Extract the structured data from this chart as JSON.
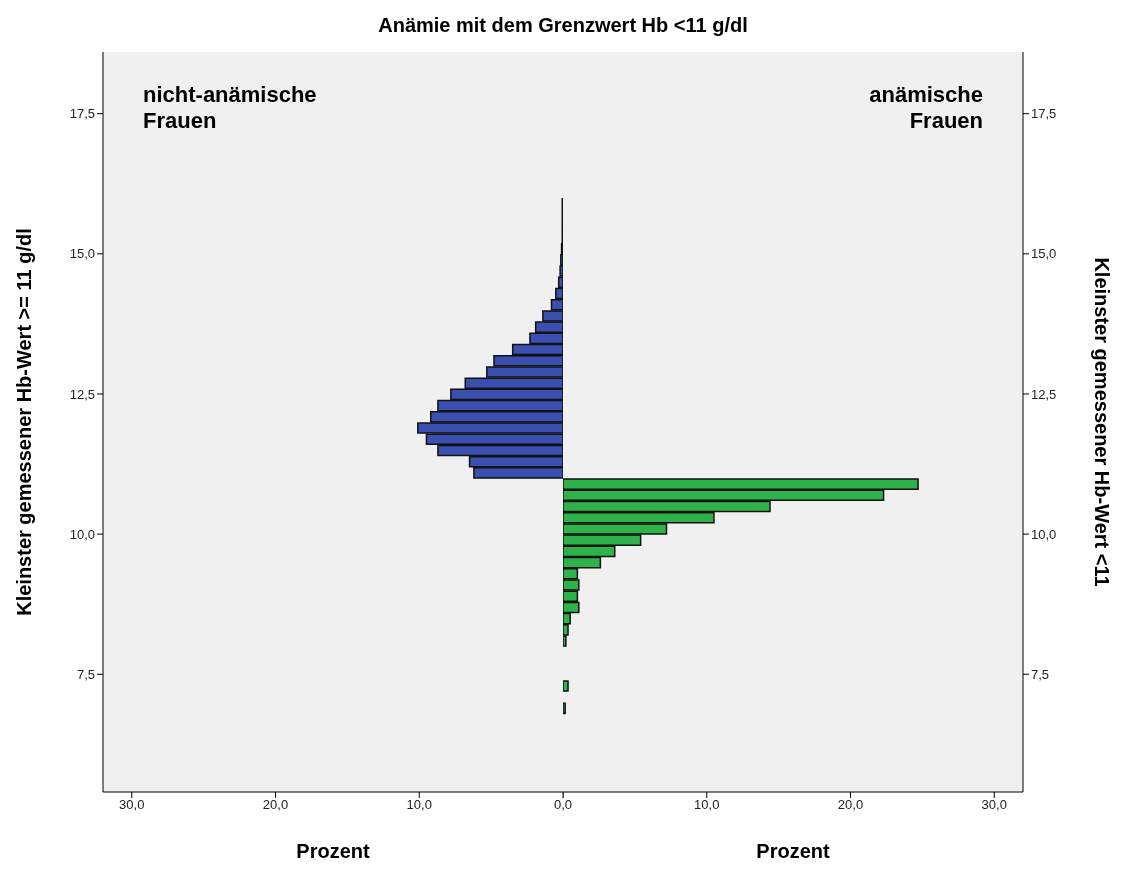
{
  "chart_data": [
    {
      "type": "histogram",
      "orientation": "horizontal",
      "title": "Anämie mit dem Grenzwert Hb <11 g/dl",
      "xlabel": "Prozent",
      "ylabel": "Kleinster gemessener Hb-Wert >= 11 g/dl",
      "bins": [
        11.0,
        11.2,
        11.4,
        11.6,
        11.8,
        12.0,
        12.2,
        12.4,
        12.6,
        12.8,
        13.0,
        13.2,
        13.4,
        13.6,
        13.8,
        14.0,
        14.2,
        14.4,
        14.6,
        14.8,
        15.0,
        15.2,
        15.4,
        15.6,
        15.8,
        16.0
      ],
      "values": [
        6.2,
        6.5,
        8.7,
        9.5,
        10.1,
        9.2,
        8.7,
        7.8,
        6.8,
        5.3,
        4.8,
        3.5,
        2.3,
        1.9,
        1.4,
        0.8,
        0.5,
        0.3,
        0.2,
        0.15,
        0.1,
        0.05,
        0.05,
        0.05,
        0.05
      ],
      "color": "#3b4fb0",
      "xlim": [
        32,
        0
      ],
      "xticks": [
        {
          "value": 30,
          "label": "30,0"
        },
        {
          "value": 20,
          "label": "20,0"
        },
        {
          "value": 10,
          "label": "10,0"
        },
        {
          "value": 0,
          "label": "0,0"
        }
      ],
      "ylim": [
        5.4,
        18.6
      ],
      "yticks": [
        {
          "value": 7.5,
          "label": "7,5"
        },
        {
          "value": 10,
          "label": "10,0"
        },
        {
          "value": 12.5,
          "label": "12,5"
        },
        {
          "value": 15,
          "label": "15,0"
        },
        {
          "value": 17.5,
          "label": "17,5"
        }
      ],
      "annotations": [
        "nicht-anämische Frauen"
      ]
    },
    {
      "type": "histogram",
      "orientation": "horizontal",
      "xlabel": "Prozent",
      "y2label": "Kleinster gemessener Hb-Wert <11",
      "bins": [
        6.8,
        7.0,
        7.2,
        7.4,
        7.6,
        7.8,
        8.0,
        8.2,
        8.4,
        8.6,
        8.8,
        9.0,
        9.2,
        9.4,
        9.6,
        9.8,
        10.0,
        10.2,
        10.4,
        10.6,
        10.8,
        11.0
      ],
      "values": [
        0.15,
        0,
        0.35,
        0,
        0,
        0,
        0.2,
        0.35,
        0.5,
        1.1,
        1.0,
        1.1,
        1.0,
        2.6,
        3.6,
        5.4,
        7.2,
        10.5,
        14.4,
        22.3,
        24.7
      ],
      "color": "#2db34a",
      "xlim": [
        0,
        32
      ],
      "xticks": [
        {
          "value": 0,
          "label": null
        },
        {
          "value": 10,
          "label": "10,0"
        },
        {
          "value": 20,
          "label": "20,0"
        },
        {
          "value": 30,
          "label": "30,0"
        }
      ],
      "ylim": [
        5.4,
        18.6
      ],
      "y2lim": [
        5.4,
        18.6
      ],
      "y2ticks": [
        {
          "value": 7.5,
          "label": "7,5"
        },
        {
          "value": 10,
          "label": "10,0"
        },
        {
          "value": 12.5,
          "label": "12,5"
        },
        {
          "value": 15,
          "label": "15,0"
        },
        {
          "value": 17.5,
          "label": "17,5"
        }
      ],
      "annotations": [
        "anämische Frauen"
      ]
    }
  ]
}
